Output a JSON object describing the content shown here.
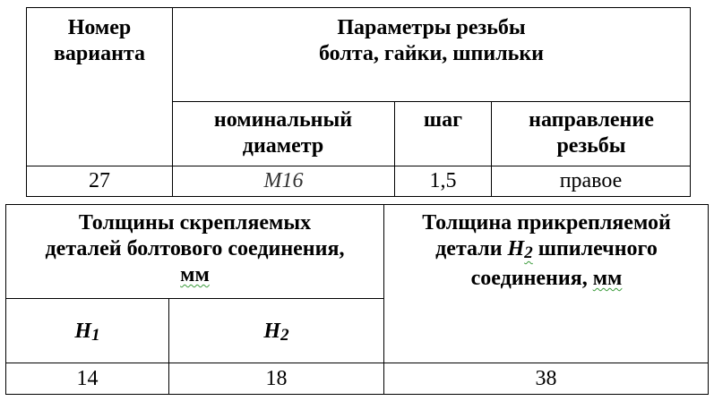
{
  "table1": {
    "headers": {
      "variant": "Номер варианта",
      "params_line1": "Параметры резьбы",
      "params_line2": "болта, гайки, шпильки",
      "diameter": "номинальный диаметр",
      "pitch": "шаг",
      "direction": "направление резьбы"
    },
    "row": {
      "variant": "27",
      "diameter": "M16",
      "pitch": "1,5",
      "direction": "правое"
    }
  },
  "table2": {
    "headers": {
      "bolt_thickness_a": "Толщины скрепляемых деталей болтового соединения,",
      "unit": "мм",
      "h1": "H",
      "h1_sub": "1",
      "h2": "H",
      "h2_sub": "2",
      "stud_a": "Толщина прикрепляемой детали",
      "stud_var": "H",
      "stud_var_sub": "2",
      "stud_b": "шпилечного соединения,"
    },
    "row": {
      "h1": "14",
      "h2": "18",
      "stud": "38"
    }
  }
}
